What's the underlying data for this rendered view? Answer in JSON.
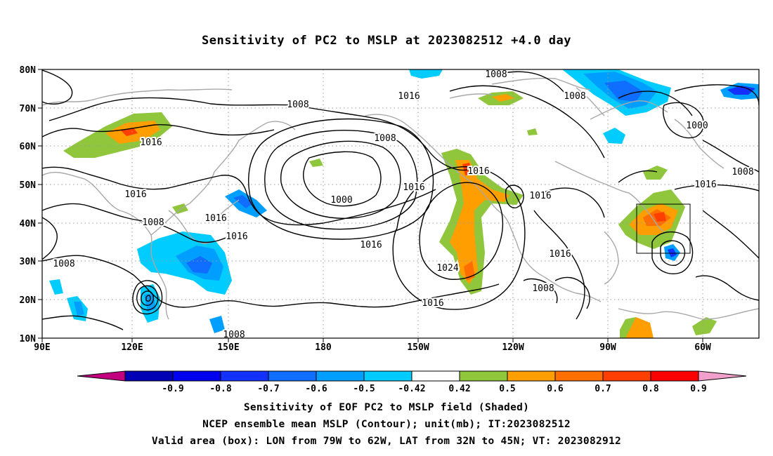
{
  "title": "Sensitivity of PC2 to MSLP at 2023082512 +4.0 day",
  "axes": {
    "lat_labels": [
      "80N",
      "70N",
      "60N",
      "50N",
      "40N",
      "30N",
      "20N",
      "10N"
    ],
    "lon_labels": [
      "90E",
      "120E",
      "150E",
      "180",
      "150W",
      "120W",
      "90W",
      "60W"
    ]
  },
  "contour_labels": [
    "1008",
    "1016",
    "1008",
    "1016",
    "1008",
    "1016",
    "1016",
    "1000",
    "1016",
    "1008",
    "1016",
    "1016",
    "1016",
    "1008",
    "1000",
    "1008",
    "1016",
    "1016",
    "1016",
    "1024",
    "1016",
    "1008",
    "1008",
    "1008"
  ],
  "colorbar": {
    "colors": [
      "#c2007f",
      "#0000b5",
      "#0000ee",
      "#1432ff",
      "#0f6eff",
      "#009fff",
      "#00ccff",
      "#ffffff",
      "#8fc63c",
      "#ff9e00",
      "#ff6e00",
      "#ff3f00",
      "#ff0000",
      "#f19fcb"
    ],
    "labels": [
      "-0.9",
      "-0.8",
      "-0.7",
      "-0.6",
      "-0.5",
      "-0.42",
      "0.42",
      "0.5",
      "0.6",
      "0.7",
      "0.8",
      "0.9"
    ]
  },
  "captions": [
    "Sensitivity of EOF PC2 to MSLP field (Shaded)",
    "NCEP ensemble mean MSLP (Contour); unit(mb); IT:2023082512",
    "Valid area (box): LON from 79W to 62W, LAT from 32N to 45N; VT: 2023082912"
  ]
}
